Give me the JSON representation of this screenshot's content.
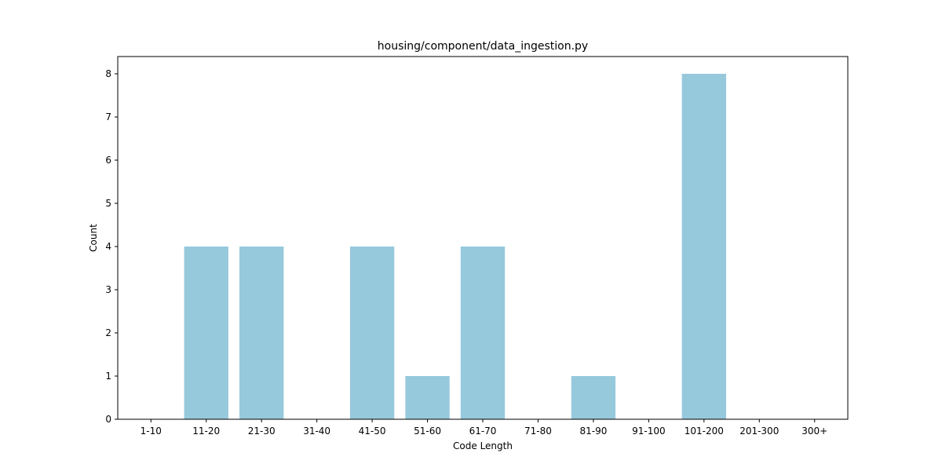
{
  "chart_data": {
    "type": "bar",
    "title": "housing/component/data_ingestion.py",
    "xlabel": "Code Length",
    "ylabel": "Count",
    "categories": [
      "1-10",
      "11-20",
      "21-30",
      "31-40",
      "41-50",
      "51-60",
      "61-70",
      "71-80",
      "81-90",
      "91-100",
      "101-200",
      "201-300",
      "300+"
    ],
    "values": [
      0,
      4,
      4,
      0,
      4,
      1,
      4,
      0,
      1,
      0,
      8,
      0,
      0
    ],
    "ylim": [
      0,
      8.4
    ],
    "yticks": [
      0,
      1,
      2,
      3,
      4,
      5,
      6,
      7,
      8
    ],
    "bar_color": "#96c9dc",
    "grid": false,
    "legend": "none"
  }
}
